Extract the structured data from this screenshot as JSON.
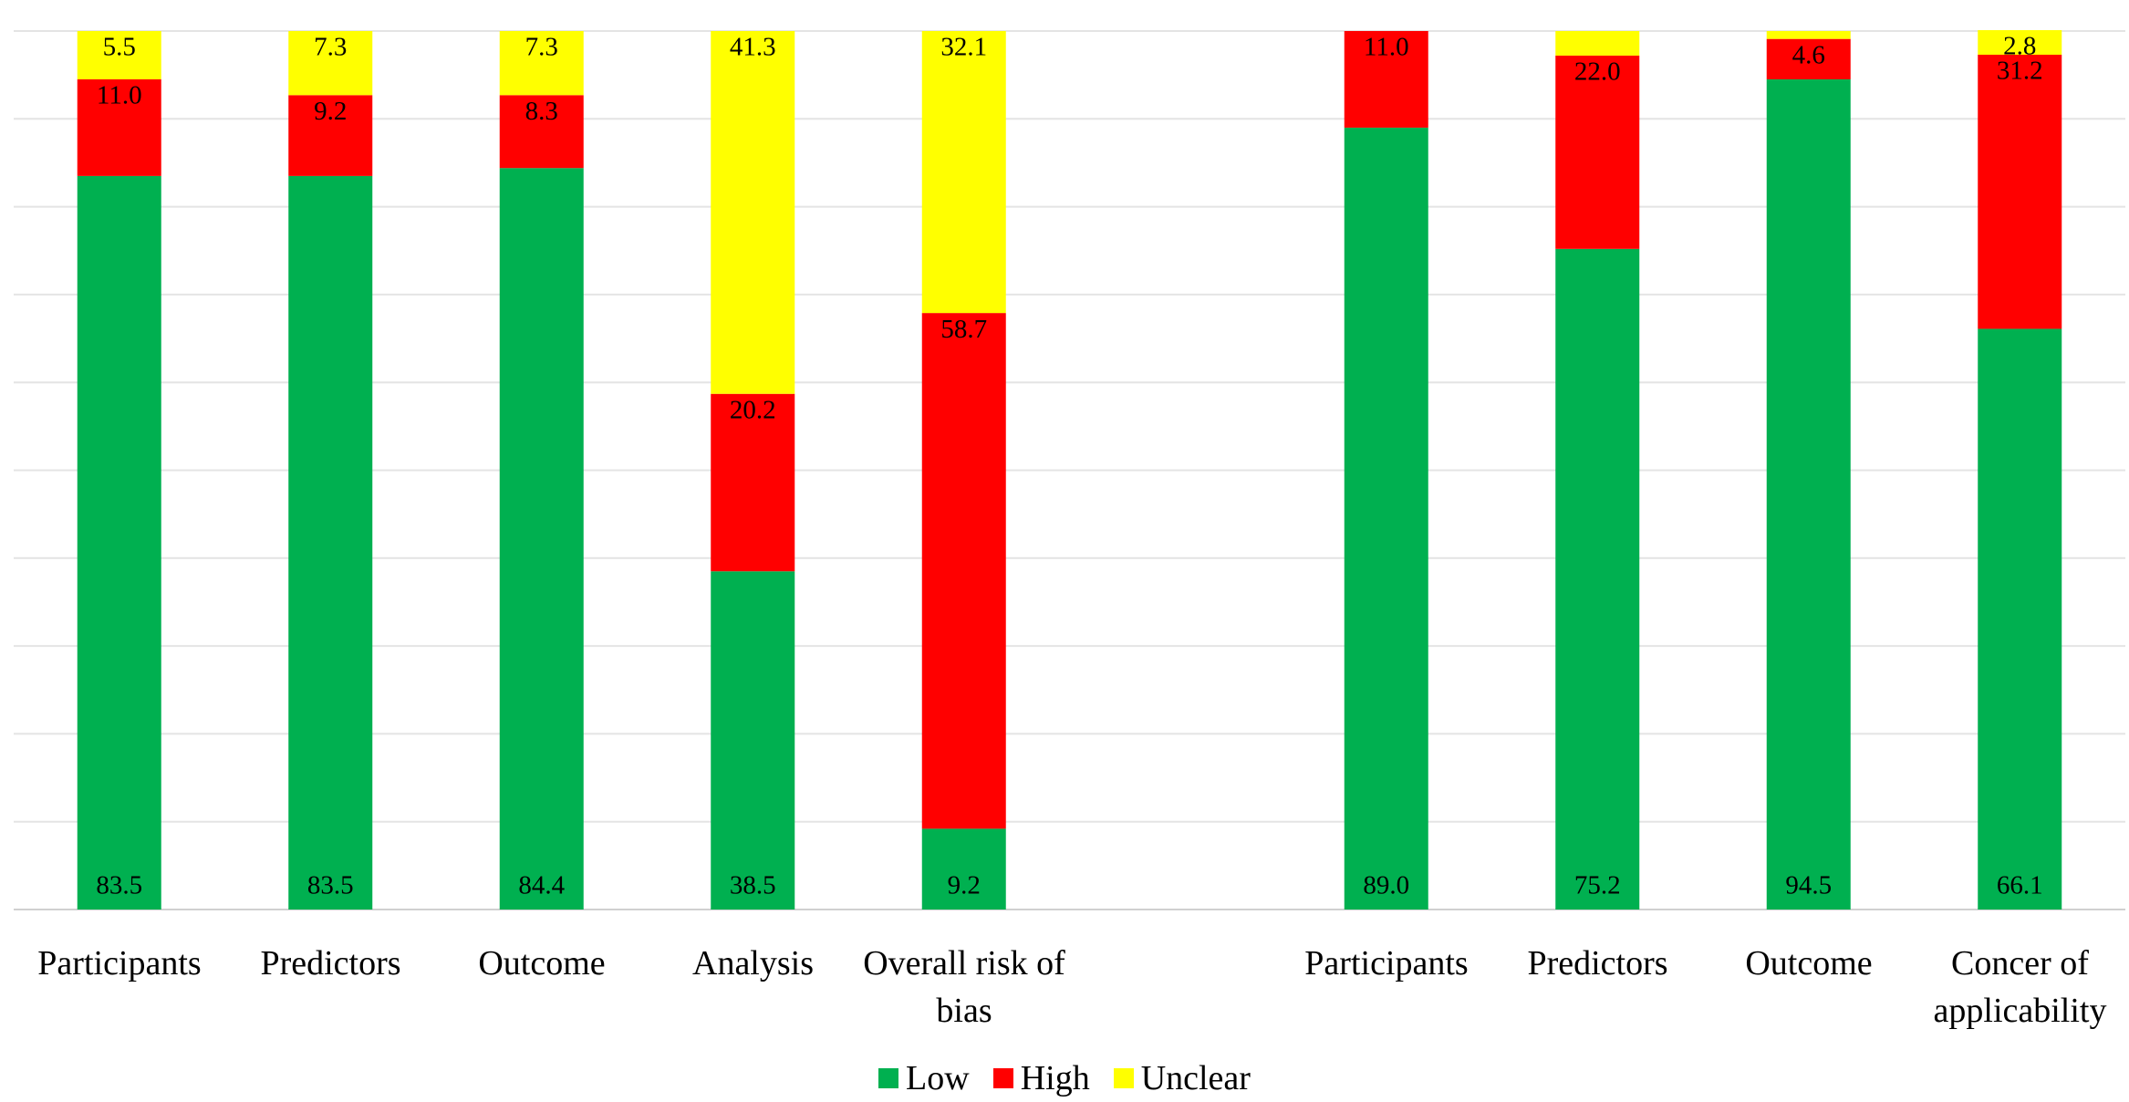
{
  "chart_data": {
    "type": "stacked_bar",
    "categories": [
      "Participants",
      "Predictors",
      "Outcome",
      "Analysis",
      "Overall risk of bias",
      null,
      "Participants",
      "Predictors",
      "Outcome",
      "Concer of applicability"
    ],
    "series": [
      {
        "name": "Low",
        "color": "#00b050",
        "values": [
          83.5,
          83.5,
          84.4,
          38.5,
          9.2,
          null,
          89.0,
          75.2,
          94.5,
          66.1
        ],
        "value_labels": [
          "83.5",
          "83.5",
          "84.4",
          "38.5",
          "9.2",
          null,
          "89.0",
          "75.2",
          "94.5",
          "66.1"
        ]
      },
      {
        "name": "High",
        "color": "#ff0000",
        "values": [
          11.0,
          9.2,
          8.3,
          20.2,
          58.7,
          null,
          11.0,
          22.0,
          4.6,
          31.2
        ],
        "value_labels": [
          "11.0",
          "9.2",
          "8.3",
          "20.2",
          "58.7",
          null,
          "11.0",
          "22.0",
          "4.6",
          "31.2"
        ]
      },
      {
        "name": "Unclear",
        "color": "#ffff00",
        "values": [
          5.5,
          7.3,
          7.3,
          41.3,
          32.1,
          null,
          0,
          2.8,
          0.9,
          2.8
        ],
        "value_labels": [
          "5.5",
          "7.3",
          "7.3",
          "41.3",
          "32.1",
          null,
          null,
          null,
          null,
          "2.8"
        ]
      }
    ],
    "ylim": [
      0,
      100
    ],
    "yticks": [
      0,
      10,
      20,
      30,
      40,
      50,
      60,
      70,
      80,
      90,
      100
    ],
    "grid": true,
    "legend": "bottom"
  }
}
